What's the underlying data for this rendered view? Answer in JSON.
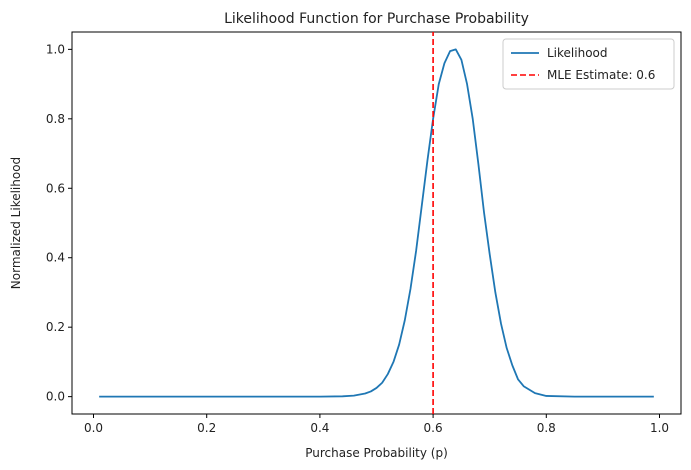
{
  "chart_data": {
    "type": "line",
    "title": "Likelihood Function for Purchase Probability",
    "xlabel": "Purchase Probability (p)",
    "ylabel": "Normalized Likelihood",
    "xlim": [
      -0.038,
      1.038
    ],
    "ylim": [
      -0.05,
      1.05
    ],
    "x_ticks": [
      0.0,
      0.2,
      0.4,
      0.6,
      0.8,
      1.0
    ],
    "x_tick_labels": [
      "0.0",
      "0.2",
      "0.4",
      "0.6",
      "0.8",
      "1.0"
    ],
    "y_ticks": [
      0.0,
      0.2,
      0.4,
      0.6,
      0.8,
      1.0
    ],
    "y_tick_labels": [
      "0.0",
      "0.2",
      "0.4",
      "0.6",
      "0.8",
      "1.0"
    ],
    "grid": false,
    "legend_position": "top-right",
    "series": [
      {
        "name": "Likelihood",
        "color": "#1f77b4",
        "style": "solid",
        "x": [
          0.01,
          0.05,
          0.1,
          0.15,
          0.2,
          0.25,
          0.3,
          0.35,
          0.4,
          0.44,
          0.46,
          0.48,
          0.49,
          0.5,
          0.51,
          0.52,
          0.53,
          0.54,
          0.55,
          0.56,
          0.57,
          0.58,
          0.59,
          0.6,
          0.61,
          0.62,
          0.63,
          0.64,
          0.65,
          0.66,
          0.67,
          0.68,
          0.69,
          0.7,
          0.71,
          0.72,
          0.73,
          0.74,
          0.75,
          0.76,
          0.78,
          0.8,
          0.85,
          0.9,
          0.95,
          0.99
        ],
        "y": [
          0.0,
          0.0,
          0.0,
          0.0,
          0.0,
          0.0,
          0.0,
          0.0,
          0.0,
          0.001,
          0.003,
          0.009,
          0.015,
          0.025,
          0.04,
          0.065,
          0.1,
          0.15,
          0.22,
          0.31,
          0.42,
          0.55,
          0.68,
          0.8,
          0.9,
          0.96,
          0.995,
          1.0,
          0.97,
          0.9,
          0.8,
          0.67,
          0.53,
          0.41,
          0.3,
          0.21,
          0.14,
          0.09,
          0.05,
          0.03,
          0.01,
          0.002,
          0.0,
          0.0,
          0.0,
          0.0
        ]
      },
      {
        "name": "MLE Estimate: 0.6",
        "color": "#ff0000",
        "style": "dashed",
        "x": [
          0.6,
          0.6
        ],
        "y": [
          -0.05,
          1.05
        ]
      }
    ]
  }
}
